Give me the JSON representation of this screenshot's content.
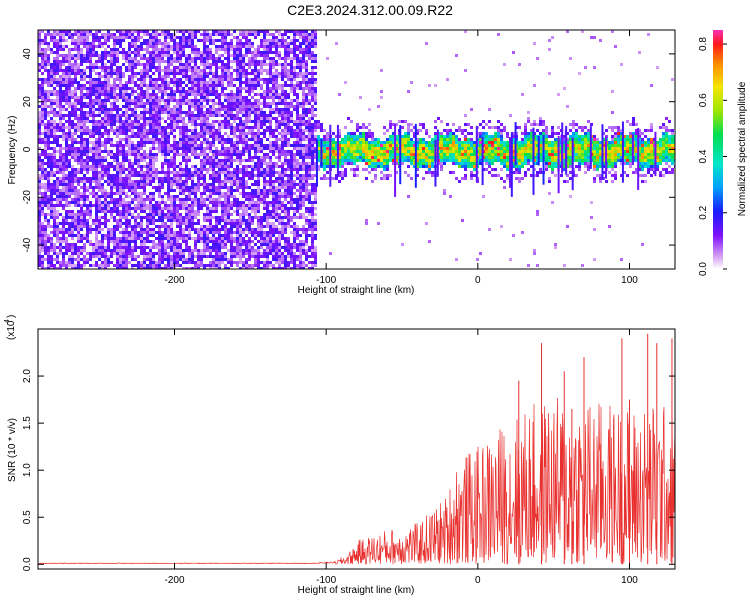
{
  "title": "C2E3.2024.312.00.09.R22",
  "chart_data": [
    {
      "type": "heatmap",
      "name": "spectrogram",
      "xlabel": "Height of straight line (km)",
      "ylabel": "Frequency (Hz)",
      "xlim": [
        -290,
        130
      ],
      "ylim": [
        -50,
        50
      ],
      "xticks": [
        -200,
        -100,
        0,
        100
      ],
      "xtick_labels": [
        "-200",
        "-100",
        "0",
        "100"
      ],
      "yticks": [
        -40,
        -20,
        0,
        20,
        40
      ],
      "ytick_labels": [
        "-40",
        "-20",
        "0",
        "20",
        "40"
      ],
      "broadband_region_km": [
        -290,
        -108
      ],
      "narrowband_region_km": [
        -108,
        130
      ],
      "narrowband_center_hz": 0,
      "narrowband_halfwidth_hz": 6,
      "colorbar": {
        "label": "Normalized spectral amplitude",
        "range": [
          0.0,
          0.85
        ],
        "ticks": [
          0.0,
          0.2,
          0.4,
          0.6,
          0.8
        ],
        "tick_labels": [
          "0.0",
          "0.2",
          "0.4",
          "0.6",
          "0.8"
        ]
      }
    },
    {
      "type": "line",
      "name": "snr",
      "xlabel": "Height of straight line (km)",
      "ylabel": "SNR (10 * v/v)",
      "ylabel_multiplier": "(x10",
      "ylabel_multiplier_exp": "4",
      "ylabel_multiplier_close": ")",
      "xlim": [
        -290,
        130
      ],
      "ylim": [
        -0.05,
        2.5
      ],
      "xticks": [
        -200,
        -100,
        0,
        100
      ],
      "xtick_labels": [
        "-200",
        "-100",
        "0",
        "100"
      ],
      "yticks": [
        0.0,
        0.5,
        1.0,
        1.5,
        2.0
      ],
      "ytick_labels": [
        "0.0",
        "0.5",
        "1.0",
        "1.5",
        "2.0"
      ],
      "color": "#e8302e",
      "envelope": {
        "x": [
          -290,
          -110,
          -95,
          -85,
          -80,
          -60,
          -40,
          -20,
          -15,
          0,
          20,
          40,
          60,
          80,
          100,
          120,
          130
        ],
        "y": [
          0.01,
          0.01,
          0.02,
          0.1,
          0.2,
          0.3,
          0.35,
          0.6,
          0.9,
          1.0,
          1.25,
          1.4,
          1.45,
          1.4,
          1.35,
          1.4,
          1.3
        ]
      },
      "peaks": [
        {
          "x": 27,
          "y": 1.95
        },
        {
          "x": 42,
          "y": 2.35
        },
        {
          "x": 57,
          "y": 2.05
        },
        {
          "x": 62,
          "y": 1.65
        },
        {
          "x": 70,
          "y": 2.2
        },
        {
          "x": 95,
          "y": 2.4
        },
        {
          "x": 100,
          "y": 1.75
        },
        {
          "x": 112,
          "y": 2.45
        },
        {
          "x": 118,
          "y": 2.35
        },
        {
          "x": 128,
          "y": 2.4
        }
      ]
    }
  ]
}
